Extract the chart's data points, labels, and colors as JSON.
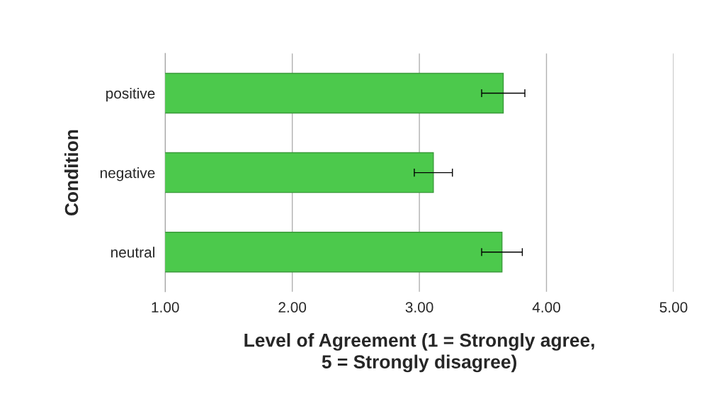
{
  "chart_data": {
    "type": "bar",
    "orientation": "horizontal",
    "categories": [
      "positive",
      "negative",
      "neutral"
    ],
    "values": [
      3.66,
      3.11,
      3.65
    ],
    "errors": [
      0.17,
      0.15,
      0.16
    ],
    "color": "#4cc94c",
    "xlim": [
      1,
      5
    ],
    "xticks": [
      {
        "value": 1,
        "label": "1.00"
      },
      {
        "value": 2,
        "label": "2.00"
      },
      {
        "value": 3,
        "label": "3.00"
      },
      {
        "value": 4,
        "label": "4.00"
      },
      {
        "value": 5,
        "label": "5.00"
      }
    ],
    "xlabel": "Level of Agreement (1 = Strongly agree,\n5 = Strongly disagree)",
    "ylabel": "Condition",
    "grid": "x"
  }
}
